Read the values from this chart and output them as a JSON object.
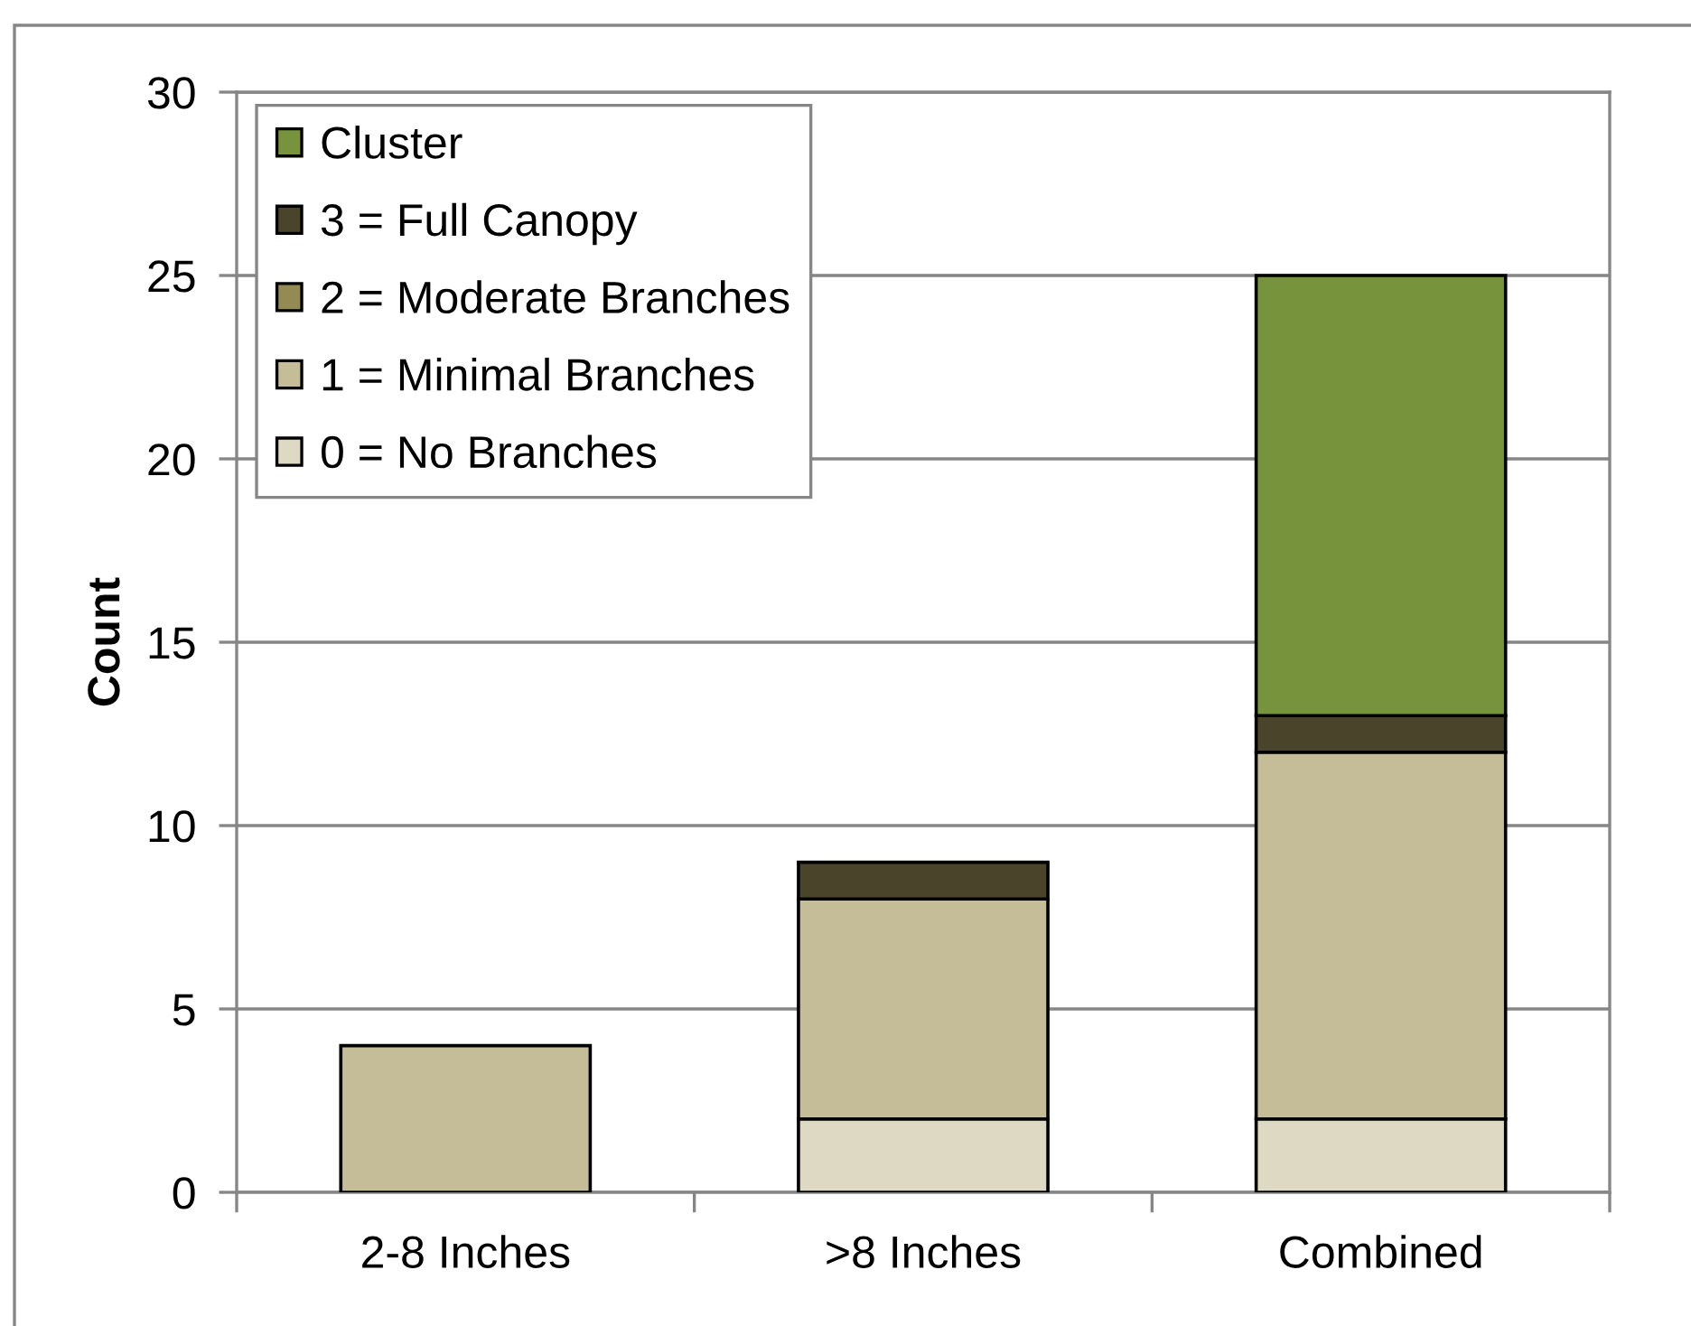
{
  "chart_data": {
    "type": "bar",
    "stacked": true,
    "ylabel": "Count",
    "categories": [
      "2-8 Inches",
      ">8 Inches",
      "Combined"
    ],
    "series": [
      {
        "name": "0 = No Branches",
        "color": "#ddd9c3",
        "values": [
          0,
          2,
          2
        ]
      },
      {
        "name": "1 = Minimal Branches",
        "color": "#c4bd97",
        "values": [
          4,
          6,
          10
        ]
      },
      {
        "name": "2 = Moderate Branches",
        "color": "#948a54",
        "values": [
          0,
          0,
          0
        ]
      },
      {
        "name": "3 = Full Canopy",
        "color": "#4a452a",
        "values": [
          0,
          1,
          1
        ]
      },
      {
        "name": "Cluster",
        "color": "#77933c",
        "values": [
          0,
          0,
          12
        ]
      }
    ],
    "ylim": [
      0,
      30
    ],
    "yticks": [
      0,
      5,
      10,
      15,
      20,
      25,
      30
    ],
    "grid": "y",
    "legend": "top left"
  }
}
